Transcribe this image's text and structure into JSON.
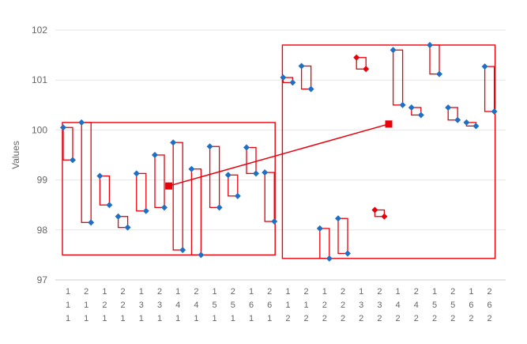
{
  "chart_data": {
    "type": "box-variability",
    "ylabel": "Values",
    "ylim": [
      97,
      102
    ],
    "yticks": [
      97,
      98,
      99,
      100,
      101,
      102
    ],
    "grid": true,
    "factors": [
      [
        "1",
        "2",
        "1",
        "2",
        "1",
        "2",
        "1",
        "2",
        "1",
        "2",
        "1",
        "2",
        "1",
        "2",
        "1",
        "2",
        "1",
        "2",
        "1",
        "2",
        "1",
        "2",
        "1",
        "2"
      ],
      [
        "1",
        "1",
        "2",
        "2",
        "3",
        "3",
        "4",
        "4",
        "5",
        "5",
        "6",
        "6",
        "1",
        "1",
        "2",
        "2",
        "3",
        "3",
        "4",
        "4",
        "5",
        "5",
        "6",
        "6"
      ],
      [
        "1",
        "1",
        "1",
        "1",
        "1",
        "1",
        "1",
        "1",
        "1",
        "1",
        "1",
        "1",
        "2",
        "2",
        "2",
        "2",
        "2",
        "2",
        "2",
        "2",
        "2",
        "2",
        "2",
        "2"
      ]
    ],
    "points": [
      [
        100.05,
        99.4
      ],
      [
        100.15,
        98.15
      ],
      [
        99.08,
        98.5
      ],
      [
        98.27,
        98.05
      ],
      [
        99.13,
        98.38
      ],
      [
        99.5,
        98.45
      ],
      [
        99.75,
        97.6
      ],
      [
        99.22,
        97.5
      ],
      [
        99.67,
        98.45
      ],
      [
        99.1,
        98.68
      ],
      [
        99.65,
        99.13
      ],
      [
        99.15,
        98.17
      ],
      [
        101.05,
        100.95
      ],
      [
        101.28,
        100.82
      ],
      [
        98.03,
        97.43
      ],
      [
        98.23,
        97.53
      ],
      [
        101.45,
        101.22
      ],
      [
        98.4,
        98.27
      ],
      [
        101.6,
        100.5
      ],
      [
        100.45,
        100.3
      ],
      [
        101.7,
        101.12
      ],
      [
        100.45,
        100.2
      ],
      [
        100.15,
        100.08
      ],
      [
        101.27,
        100.37
      ]
    ],
    "highlighted_groups": [
      16,
      17
    ],
    "outer_groups": [
      {
        "from": 0,
        "to": 11,
        "min": 97.5,
        "max": 100.15,
        "mean": 98.88
      },
      {
        "from": 12,
        "to": 23,
        "min": 97.43,
        "max": 101.7,
        "mean": 100.12
      }
    ],
    "colors": {
      "point": "#1f6fc5",
      "highlight": "#e8000b",
      "box": "#e8000b",
      "grid": "#e6e6e6",
      "axis": "#cccccc"
    }
  }
}
